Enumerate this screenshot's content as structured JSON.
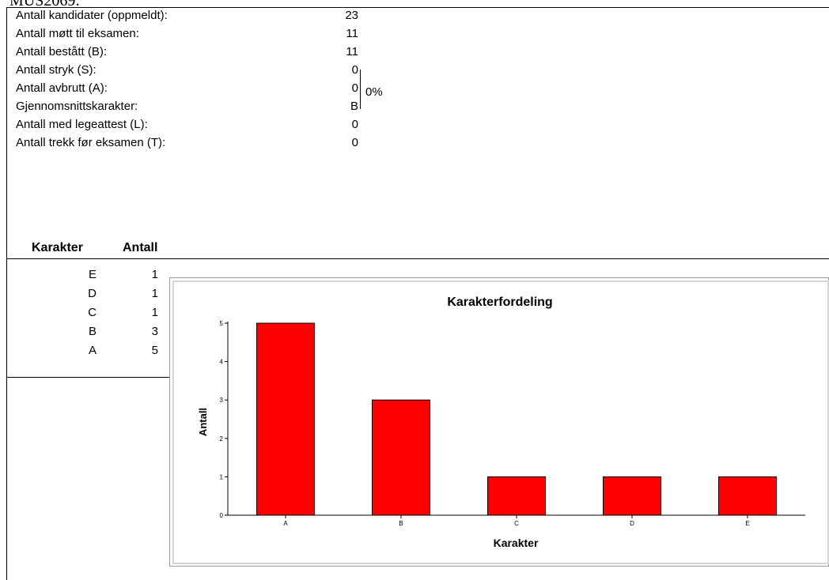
{
  "heading": "MUS2069:",
  "stats": [
    {
      "label": "Antall kandidater (oppmeldt):",
      "value": "23"
    },
    {
      "label": "Antall møtt til eksamen:",
      "value": "11"
    },
    {
      "label": "Antall bestått (B):",
      "value": "11"
    },
    {
      "label": "Antall stryk (S):",
      "value": "0"
    },
    {
      "label": "Antall avbrutt (A):",
      "value": "0"
    },
    {
      "label": "Gjennomsnittskarakter:",
      "value": "B"
    },
    {
      "label": "Antall med legeattest (L):",
      "value": "0"
    },
    {
      "label": "Antall trekk før eksamen (T):",
      "value": "0"
    }
  ],
  "fail_percentage": "0%",
  "table": {
    "header_grade": "Karakter",
    "header_count": "Antall",
    "rows": [
      {
        "grade": "E",
        "count": "1"
      },
      {
        "grade": "D",
        "count": "1"
      },
      {
        "grade": "C",
        "count": "1"
      },
      {
        "grade": "B",
        "count": "3"
      },
      {
        "grade": "A",
        "count": "5"
      }
    ]
  },
  "chart_data": {
    "type": "bar",
    "title": "Karakterfordeling",
    "xlabel": "Karakter",
    "ylabel": "Antall",
    "categories": [
      "A",
      "B",
      "C",
      "D",
      "E"
    ],
    "values": [
      5,
      3,
      1,
      1,
      1
    ],
    "ylim": [
      0,
      5
    ],
    "yticks": [
      0,
      1,
      2,
      3,
      4,
      5
    ],
    "bar_color": "#ff0000",
    "grid": false
  }
}
